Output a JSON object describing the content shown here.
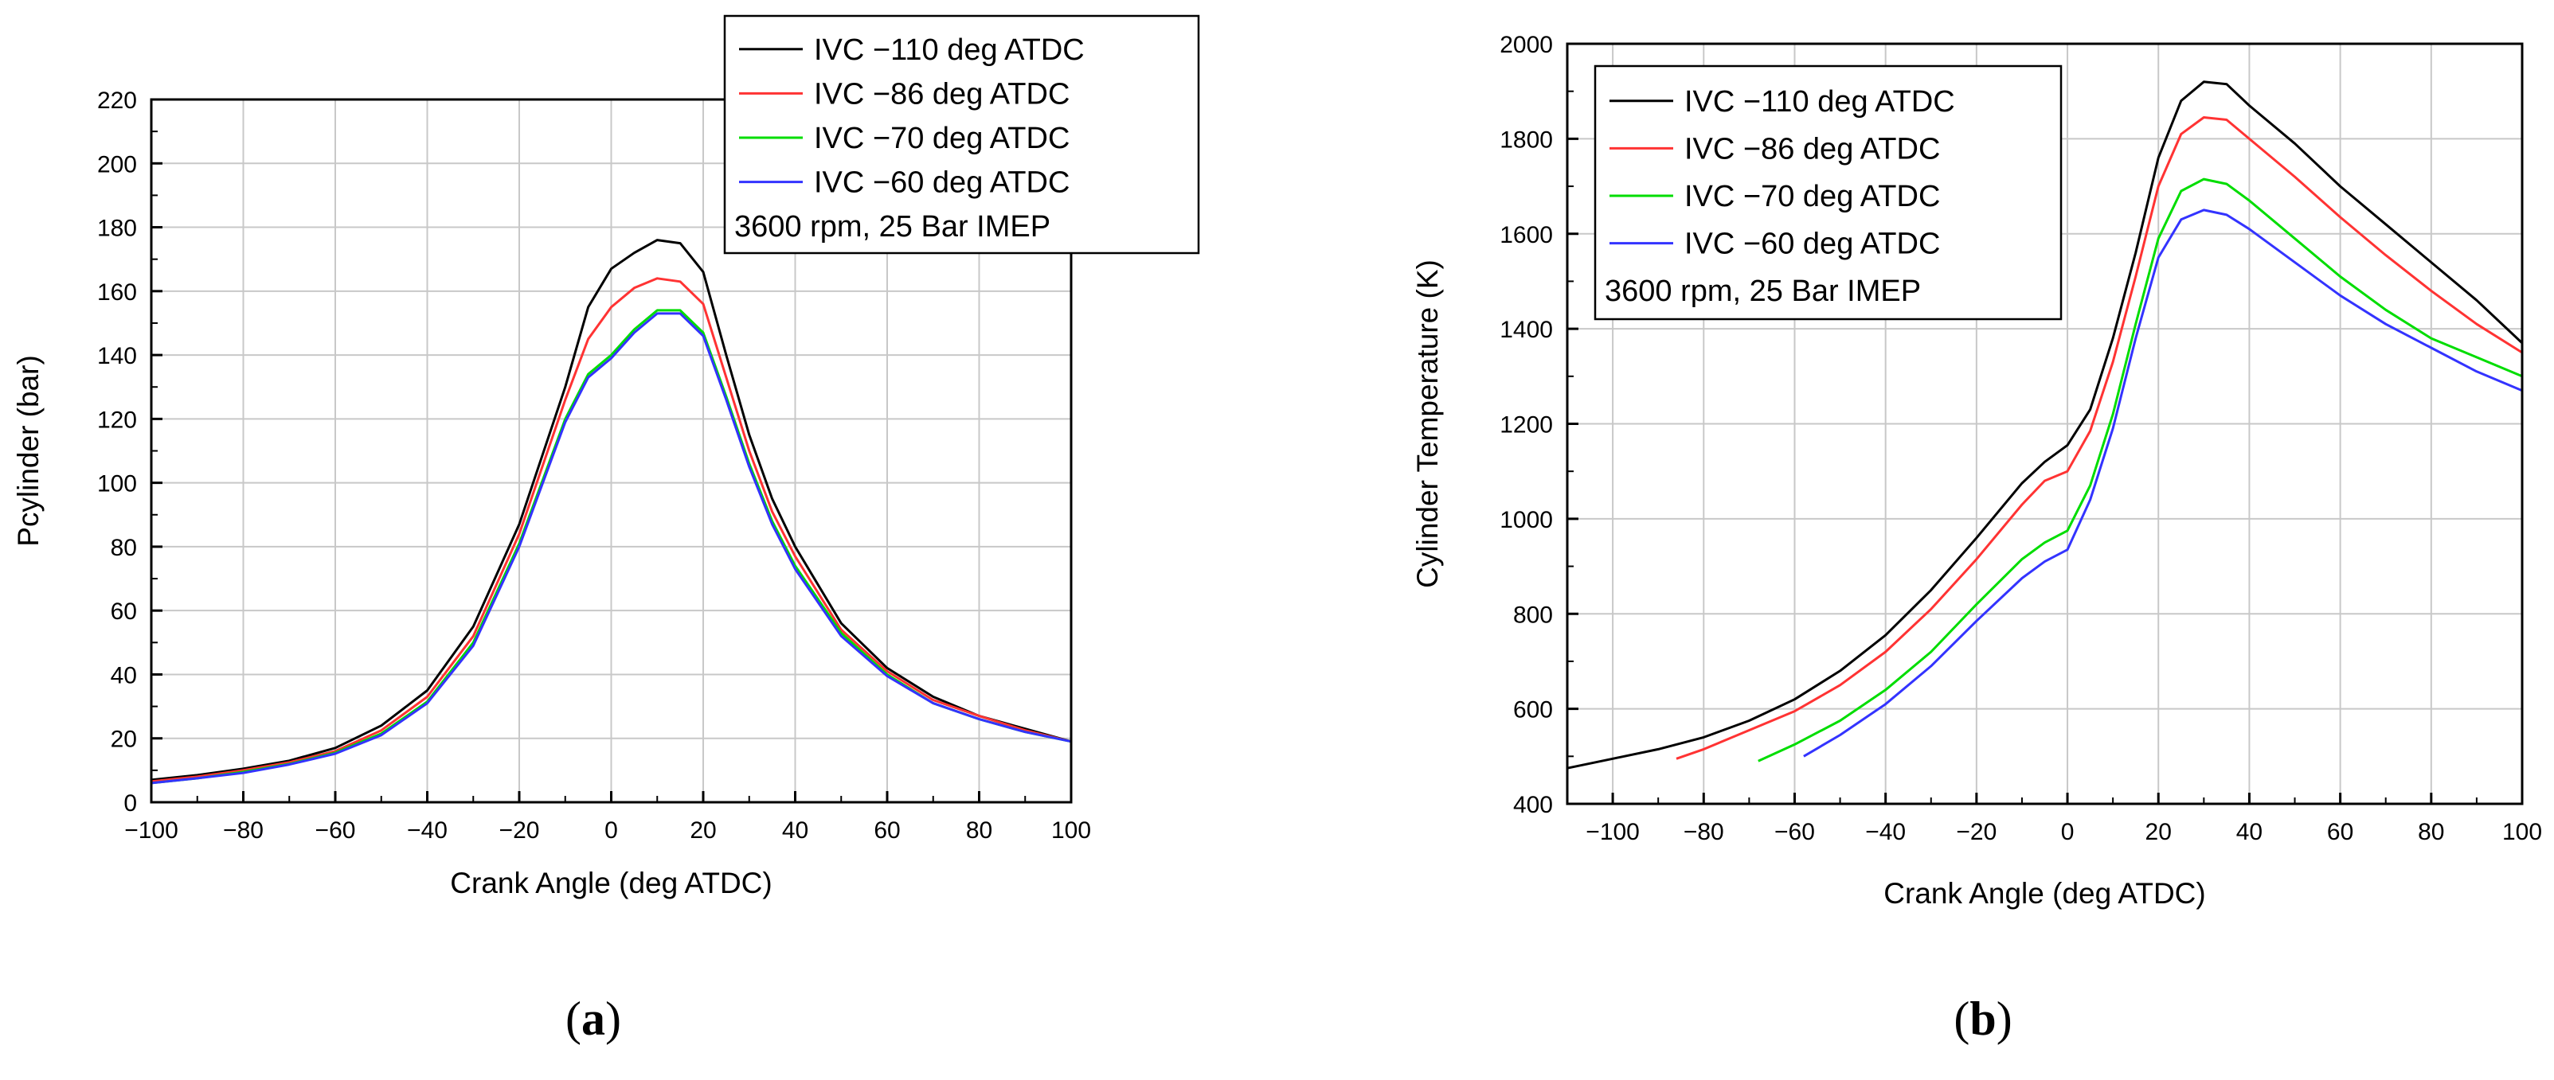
{
  "chart_data": [
    {
      "type": "line",
      "panel_label": "a",
      "title": "",
      "xlabel": "Crank Angle (deg ATDC)",
      "ylabel": "Pcylinder (bar)",
      "xlim": [
        -100,
        100
      ],
      "ylim": [
        0,
        220
      ],
      "xticks": [
        -100,
        -80,
        -60,
        -40,
        -20,
        0,
        20,
        40,
        60,
        80,
        100
      ],
      "xtick_labels": [
        "−100",
        "−80",
        "−60",
        "−40",
        "−20",
        "0",
        "20",
        "40",
        "60",
        "80",
        "100"
      ],
      "yticks": [
        0,
        20,
        40,
        60,
        80,
        100,
        120,
        140,
        160,
        180,
        200,
        220
      ],
      "ytick_labels": [
        "0",
        "20",
        "40",
        "60",
        "80",
        "100",
        "120",
        "140",
        "160",
        "180",
        "200",
        "220"
      ],
      "grid": true,
      "legend_position": "top-right",
      "annotation": "3600 rpm, 25 Bar IMEP",
      "series": [
        {
          "name": "IVC −110 deg ATDC",
          "color": "#000000",
          "x": [
            -100,
            -90,
            -80,
            -70,
            -60,
            -50,
            -40,
            -30,
            -20,
            -10,
            -5,
            0,
            5,
            10,
            15,
            20,
            25,
            30,
            35,
            40,
            50,
            60,
            70,
            80,
            90,
            100
          ],
          "y": [
            7,
            8.5,
            10.5,
            13,
            17,
            24,
            35,
            55,
            87,
            130,
            155,
            167,
            172,
            176,
            175,
            166,
            140,
            115,
            95,
            80,
            56,
            42,
            33,
            27,
            23,
            19
          ]
        },
        {
          "name": "IVC −86 deg ATDC",
          "color": "#ff3333",
          "x": [
            -100,
            -90,
            -80,
            -70,
            -60,
            -50,
            -40,
            -30,
            -20,
            -10,
            -5,
            0,
            5,
            10,
            15,
            20,
            25,
            30,
            35,
            40,
            50,
            60,
            70,
            80,
            90,
            100
          ],
          "y": [
            6.5,
            8,
            10,
            12.5,
            16,
            22.5,
            33,
            52,
            84,
            126,
            145,
            155,
            161,
            164,
            163,
            156,
            133,
            110,
            91,
            77,
            54,
            41,
            32,
            27,
            22.5,
            19
          ]
        },
        {
          "name": "IVC −70 deg ATDC",
          "color": "#00dd00",
          "x": [
            -100,
            -90,
            -80,
            -70,
            -60,
            -50,
            -40,
            -30,
            -20,
            -10,
            -5,
            0,
            5,
            10,
            15,
            20,
            25,
            30,
            35,
            40,
            50,
            60,
            70,
            80,
            90,
            100
          ],
          "y": [
            6,
            7.5,
            9.5,
            12,
            15.5,
            21.5,
            31.5,
            50,
            81,
            120,
            134,
            140,
            148,
            154,
            154,
            147,
            127,
            106,
            88,
            74,
            53,
            40,
            31,
            26,
            22,
            19
          ]
        },
        {
          "name": "IVC −60 deg ATDC",
          "color": "#3333ff",
          "x": [
            -100,
            -90,
            -80,
            -70,
            -60,
            -50,
            -40,
            -30,
            -20,
            -10,
            -5,
            0,
            5,
            10,
            15,
            20,
            25,
            30,
            35,
            40,
            50,
            60,
            70,
            80,
            90,
            100
          ],
          "y": [
            6,
            7.5,
            9.2,
            11.8,
            15.2,
            21,
            31,
            49,
            80,
            119,
            133,
            139,
            147,
            153,
            153,
            146,
            126,
            105,
            87,
            73,
            52,
            39.5,
            31,
            26,
            22,
            19
          ]
        }
      ]
    },
    {
      "type": "line",
      "panel_label": "b",
      "title": "",
      "xlabel": "Crank Angle (deg ATDC)",
      "ylabel": "Cylinder Temperature (K)",
      "xlim": [
        -110,
        100
      ],
      "ylim": [
        400,
        2000
      ],
      "xticks": [
        -100,
        -80,
        -60,
        -40,
        -20,
        0,
        20,
        40,
        60,
        80,
        100
      ],
      "xtick_labels": [
        "−100",
        "−80",
        "−60",
        "−40",
        "−20",
        "0",
        "20",
        "40",
        "60",
        "80",
        "100"
      ],
      "yticks": [
        400,
        600,
        800,
        1000,
        1200,
        1400,
        1600,
        1800,
        2000
      ],
      "ytick_labels": [
        "400",
        "600",
        "800",
        "1000",
        "1200",
        "1400",
        "1600",
        "1800",
        "2000"
      ],
      "grid": true,
      "legend_position": "top-left",
      "annotation": "3600 rpm, 25 Bar IMEP",
      "series": [
        {
          "name": "IVC −110 deg ATDC",
          "color": "#000000",
          "x": [
            -110,
            -100,
            -90,
            -80,
            -70,
            -60,
            -50,
            -40,
            -30,
            -20,
            -10,
            -5,
            0,
            5,
            10,
            15,
            20,
            25,
            30,
            35,
            40,
            50,
            60,
            70,
            80,
            90,
            100
          ],
          "y": [
            475,
            495,
            515,
            540,
            575,
            620,
            680,
            755,
            850,
            960,
            1075,
            1120,
            1155,
            1230,
            1380,
            1560,
            1760,
            1880,
            1920,
            1915,
            1870,
            1790,
            1700,
            1620,
            1540,
            1460,
            1370
          ]
        },
        {
          "name": "IVC −86 deg ATDC",
          "color": "#ff3333",
          "x": [
            -86,
            -80,
            -70,
            -60,
            -50,
            -40,
            -30,
            -20,
            -10,
            -5,
            0,
            5,
            10,
            15,
            20,
            25,
            30,
            35,
            40,
            50,
            60,
            70,
            80,
            90,
            100
          ],
          "y": [
            495,
            515,
            555,
            595,
            650,
            720,
            810,
            915,
            1030,
            1080,
            1100,
            1185,
            1330,
            1510,
            1700,
            1810,
            1845,
            1840,
            1800,
            1720,
            1635,
            1555,
            1480,
            1410,
            1350
          ]
        },
        {
          "name": "IVC −70 deg ATDC",
          "color": "#00dd00",
          "x": [
            -68,
            -60,
            -50,
            -40,
            -30,
            -20,
            -10,
            -5,
            0,
            5,
            10,
            15,
            20,
            25,
            30,
            35,
            40,
            50,
            60,
            70,
            80,
            90,
            100
          ],
          "y": [
            490,
            525,
            575,
            640,
            720,
            820,
            915,
            950,
            975,
            1070,
            1220,
            1410,
            1590,
            1690,
            1715,
            1705,
            1670,
            1590,
            1510,
            1440,
            1380,
            1340,
            1300
          ]
        },
        {
          "name": "IVC −60 deg ATDC",
          "color": "#3333ff",
          "x": [
            -58,
            -50,
            -40,
            -30,
            -20,
            -10,
            -5,
            0,
            5,
            10,
            15,
            20,
            25,
            30,
            35,
            40,
            50,
            60,
            70,
            80,
            90,
            100
          ],
          "y": [
            500,
            545,
            610,
            690,
            785,
            875,
            910,
            935,
            1040,
            1190,
            1380,
            1550,
            1630,
            1650,
            1640,
            1610,
            1540,
            1470,
            1410,
            1360,
            1310,
            1270
          ]
        }
      ]
    }
  ]
}
